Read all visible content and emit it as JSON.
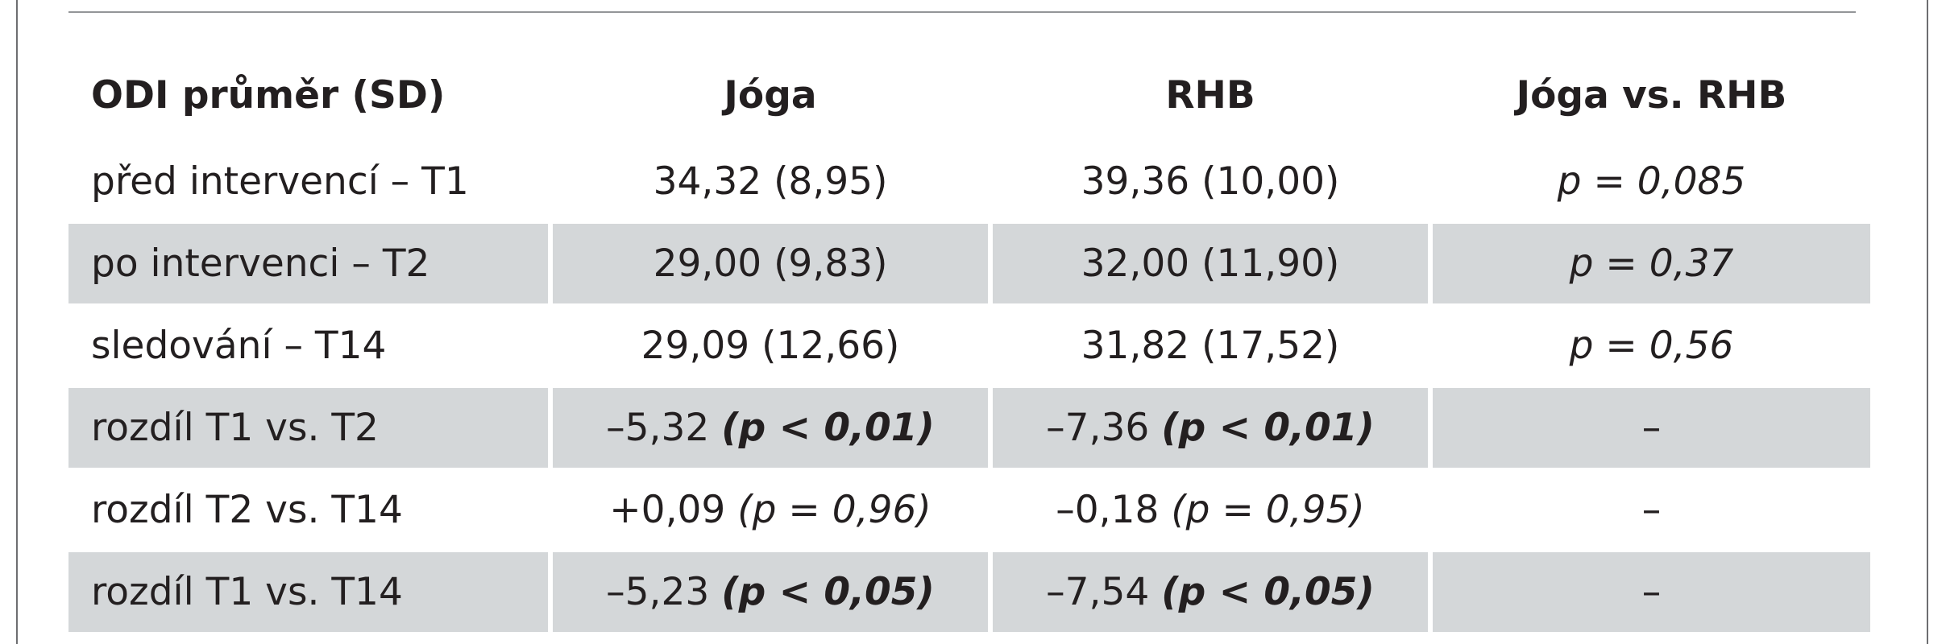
{
  "table": {
    "headers": [
      "ODI průměr (SD)",
      "Jóga",
      "RHB",
      "Jóga vs. RHB"
    ],
    "rows": [
      {
        "label": "před intervencí – T1",
        "joga": {
          "value": "34,32 (8,95)",
          "p": ""
        },
        "rhb": {
          "value": "39,36 (10,00)",
          "p": ""
        },
        "compare": "p = 0,085"
      },
      {
        "label": "po intervenci – T2",
        "joga": {
          "value": "29,00 (9,83)",
          "p": ""
        },
        "rhb": {
          "value": "32,00 (11,90)",
          "p": ""
        },
        "compare": "p = 0,37"
      },
      {
        "label": "sledování – T14",
        "joga": {
          "value": "29,09 (12,66)",
          "p": ""
        },
        "rhb": {
          "value": "31,82 (17,52)",
          "p": ""
        },
        "compare": "p = 0,56"
      },
      {
        "label": "rozdíl T1 vs. T2",
        "joga": {
          "value": "–5,32 ",
          "p": "(p < 0,01)"
        },
        "rhb": {
          "value": "–7,36 ",
          "p": "(p < 0,01)"
        },
        "compare": "–"
      },
      {
        "label": "rozdíl T2 vs. T14",
        "joga": {
          "value": "+0,09 ",
          "p": "(p = 0,96)"
        },
        "rhb": {
          "value": "–0,18 ",
          "p": "(p = 0,95)"
        },
        "compare": "–"
      },
      {
        "label": "rozdíl T1 vs. T14",
        "joga": {
          "value": "–5,23 ",
          "p": "(p < 0,05)"
        },
        "rhb": {
          "value": "–7,54 ",
          "p": "(p < 0,05)"
        },
        "compare": "–"
      }
    ]
  }
}
